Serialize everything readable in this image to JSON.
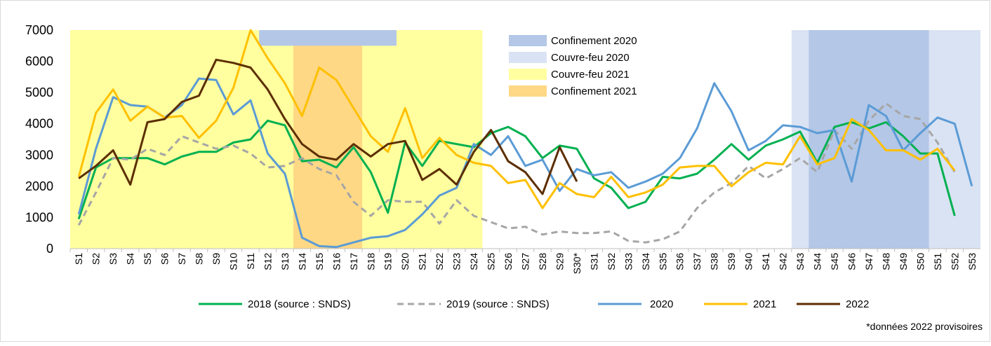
{
  "chart_data": {
    "type": "line",
    "categories": [
      "S1",
      "S2",
      "S3",
      "S4",
      "S5",
      "S6",
      "S7",
      "S8",
      "S9",
      "S10",
      "S11",
      "S12",
      "S13",
      "S14",
      "S15",
      "S16",
      "S17",
      "S18",
      "S19",
      "S20",
      "S21",
      "S22",
      "S23",
      "S24",
      "S25",
      "S26",
      "S27",
      "S28",
      "S29",
      "S30*",
      "S31",
      "S32",
      "S33",
      "S34",
      "S35",
      "S36",
      "S37",
      "S38",
      "S39",
      "S40",
      "S41",
      "S42",
      "S43",
      "S44",
      "S45",
      "S46",
      "S47",
      "S48",
      "S49",
      "S50",
      "S51",
      "S52",
      "S53"
    ],
    "series": [
      {
        "name": "2018 (source : SNDS)",
        "color": "#00b050",
        "dash": false,
        "values": [
          950,
          2600,
          2900,
          2900,
          2900,
          2700,
          2950,
          3100,
          3100,
          3400,
          3500,
          4100,
          3950,
          2800,
          2850,
          2600,
          3250,
          2450,
          1150,
          3400,
          2650,
          3450,
          3350,
          3250,
          3700,
          3900,
          3600,
          2900,
          3300,
          3200,
          2250,
          1950,
          1300,
          1500,
          2300,
          2250,
          2400,
          2850,
          3350,
          2850,
          3300,
          3500,
          3750,
          2750,
          3900,
          4050,
          3850,
          4050,
          3600,
          3050,
          3050,
          1050,
          null
        ]
      },
      {
        "name": "2019 (source : SNDS)",
        "color": "#a6a6a6",
        "dash": true,
        "values": [
          750,
          1800,
          2900,
          2850,
          3200,
          3000,
          3600,
          3400,
          3200,
          3300,
          3050,
          2600,
          2650,
          2900,
          2550,
          2350,
          1500,
          1050,
          1550,
          1500,
          1500,
          800,
          1550,
          1050,
          850,
          650,
          700,
          450,
          550,
          500,
          500,
          550,
          250,
          200,
          300,
          550,
          1300,
          1800,
          2100,
          2650,
          2250,
          2550,
          2900,
          2450,
          3800,
          3200,
          4100,
          4650,
          4250,
          4150,
          3400,
          2450,
          null
        ]
      },
      {
        "name": "2020",
        "color": "#5b9bd5",
        "dash": false,
        "values": [
          1100,
          3200,
          4850,
          4600,
          4550,
          4200,
          4600,
          5450,
          5400,
          4300,
          4750,
          3050,
          2400,
          350,
          80,
          50,
          200,
          350,
          400,
          600,
          1100,
          1700,
          1950,
          3350,
          3000,
          3600,
          2650,
          2850,
          1850,
          2550,
          2350,
          2450,
          1950,
          2150,
          2400,
          2900,
          3850,
          5300,
          4400,
          3150,
          3450,
          3950,
          3900,
          3700,
          3800,
          2150,
          4600,
          4250,
          3150,
          3700,
          4200,
          4000,
          2000
        ]
      },
      {
        "name": "2021",
        "color": "#ffc000",
        "dash": false,
        "values": [
          2300,
          4350,
          5100,
          4100,
          4550,
          4200,
          4250,
          3550,
          4100,
          5150,
          7000,
          6100,
          5300,
          4250,
          5800,
          5400,
          4500,
          3600,
          3100,
          4500,
          2900,
          3550,
          3000,
          2750,
          2650,
          2100,
          2200,
          1300,
          2100,
          1750,
          1650,
          2300,
          1650,
          1800,
          2050,
          2600,
          2650,
          2650,
          2000,
          2450,
          2750,
          2700,
          3600,
          2700,
          2900,
          4150,
          3800,
          3150,
          3150,
          2850,
          3200,
          2500,
          null
        ]
      },
      {
        "name": "2022",
        "color": "#5c2e00",
        "dash": false,
        "values": [
          2250,
          2650,
          3150,
          2050,
          4050,
          4150,
          4700,
          4900,
          6050,
          5950,
          5800,
          5100,
          4150,
          3350,
          2950,
          2850,
          3350,
          2950,
          3350,
          3450,
          2200,
          2550,
          2050,
          3100,
          3800,
          2800,
          2450,
          1750,
          3250,
          2150,
          null,
          null,
          null,
          null,
          null,
          null,
          null,
          null,
          null,
          null,
          null,
          null,
          null,
          null,
          null,
          null,
          null,
          null,
          null,
          null,
          null,
          null,
          null
        ]
      }
    ],
    "bands": [
      {
        "name": "Confinement 2020",
        "color": "#b4c7e7",
        "ranges": [
          {
            "from": "S12",
            "to": "S19",
            "ylim": [
              6500,
              7000
            ]
          },
          {
            "from": "S44",
            "to": "S50"
          }
        ]
      },
      {
        "name": "Couvre-feu 2020",
        "color": "#dae3f3",
        "ranges": [
          {
            "from": "S43",
            "to": "S53"
          }
        ]
      },
      {
        "name": "Couvre-feu 2021",
        "color": "#ffff9f",
        "ranges": [
          {
            "from": "S1",
            "to": "S24"
          }
        ]
      },
      {
        "name": "Confinement 2021",
        "color": "#ffd885",
        "ranges": [
          {
            "from": "S14",
            "to": "S17"
          }
        ]
      }
    ],
    "ylim": [
      0,
      7000
    ],
    "yticks": [
      0,
      1000,
      2000,
      3000,
      4000,
      5000,
      6000,
      7000
    ],
    "grid": false,
    "note": "*données 2022 provisoires"
  }
}
